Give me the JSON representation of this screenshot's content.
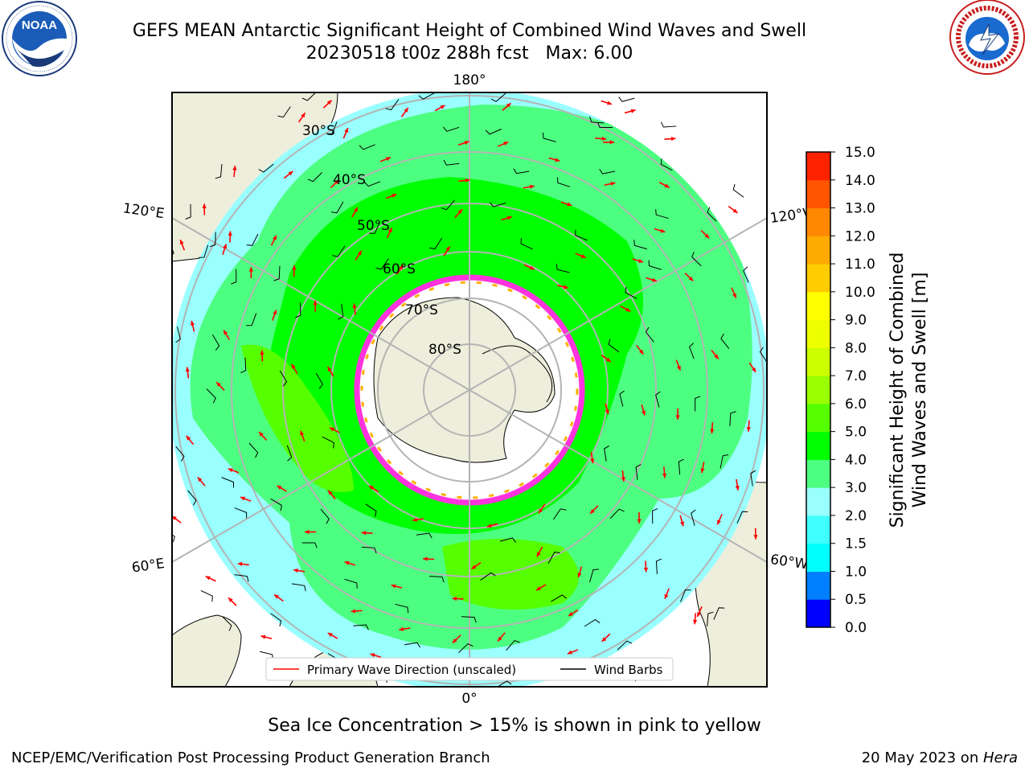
{
  "title": {
    "line1": "GEFS MEAN Antarctic Significant Height of Combined Wind Waves and Swell",
    "line2": "20230518 t00z 288h fcst   Max: 6.00"
  },
  "logos": {
    "left": {
      "name": "noaa-logo",
      "text": "NOAA",
      "ring_text": "NATIONAL OCEANIC AND ATMOSPHERIC ADMINISTRATION · U.S. DEPARTMENT OF COMMERCE"
    },
    "right": {
      "name": "nws-logo",
      "ring_text": "NATIONAL WEATHER SERVICE"
    }
  },
  "map": {
    "projection": "south-polar-stereographic",
    "longitude_labels": {
      "top": "180°",
      "bottom": "0°",
      "upper_left": "120°E",
      "lower_left": "60°E",
      "upper_right": "120°W",
      "lower_right": "60°W"
    },
    "latitude_labels": [
      "30°S",
      "40°S",
      "50°S",
      "60°S",
      "70°S",
      "80°S"
    ],
    "legend": [
      {
        "label": "Primary Wave Direction (unscaled)",
        "color": "#ff0000"
      },
      {
        "label": "Wind Barbs",
        "color": "#000000"
      }
    ],
    "colors": {
      "land": "#eeeedc",
      "ice_edge": "#ff33dd",
      "ice_inner": "#ffb000",
      "grid": "#b4b4b4",
      "arrow": "#ff0000"
    }
  },
  "colorbar": {
    "label_line1": "Significant Height of Combined",
    "label_line2": "Wind Waves and Swell [m]",
    "ticks": [
      "0.0",
      "0.5",
      "1.0",
      "1.5",
      "2.0",
      "3.0",
      "4.0",
      "5.0",
      "6.0",
      "7.0",
      "8.0",
      "9.0",
      "10.0",
      "11.0",
      "12.0",
      "13.0",
      "14.0",
      "15.0"
    ],
    "colors": [
      "#0000ff",
      "#0080ff",
      "#00ffff",
      "#40ffff",
      "#99ffff",
      "#4dff80",
      "#00ff00",
      "#55ff00",
      "#99ff00",
      "#ccff00",
      "#eeff00",
      "#ffff00",
      "#ffcc00",
      "#ffaa00",
      "#ff8800",
      "#ff5500",
      "#ff2200"
    ]
  },
  "footer": {
    "note": "Sea Ice Concentration > 15% is shown in pink to yellow",
    "left": "NCEP/EMC/Verification Post Processing Product Generation Branch",
    "right_prefix": "20 May 2023 on ",
    "right_machine": "Hera"
  }
}
